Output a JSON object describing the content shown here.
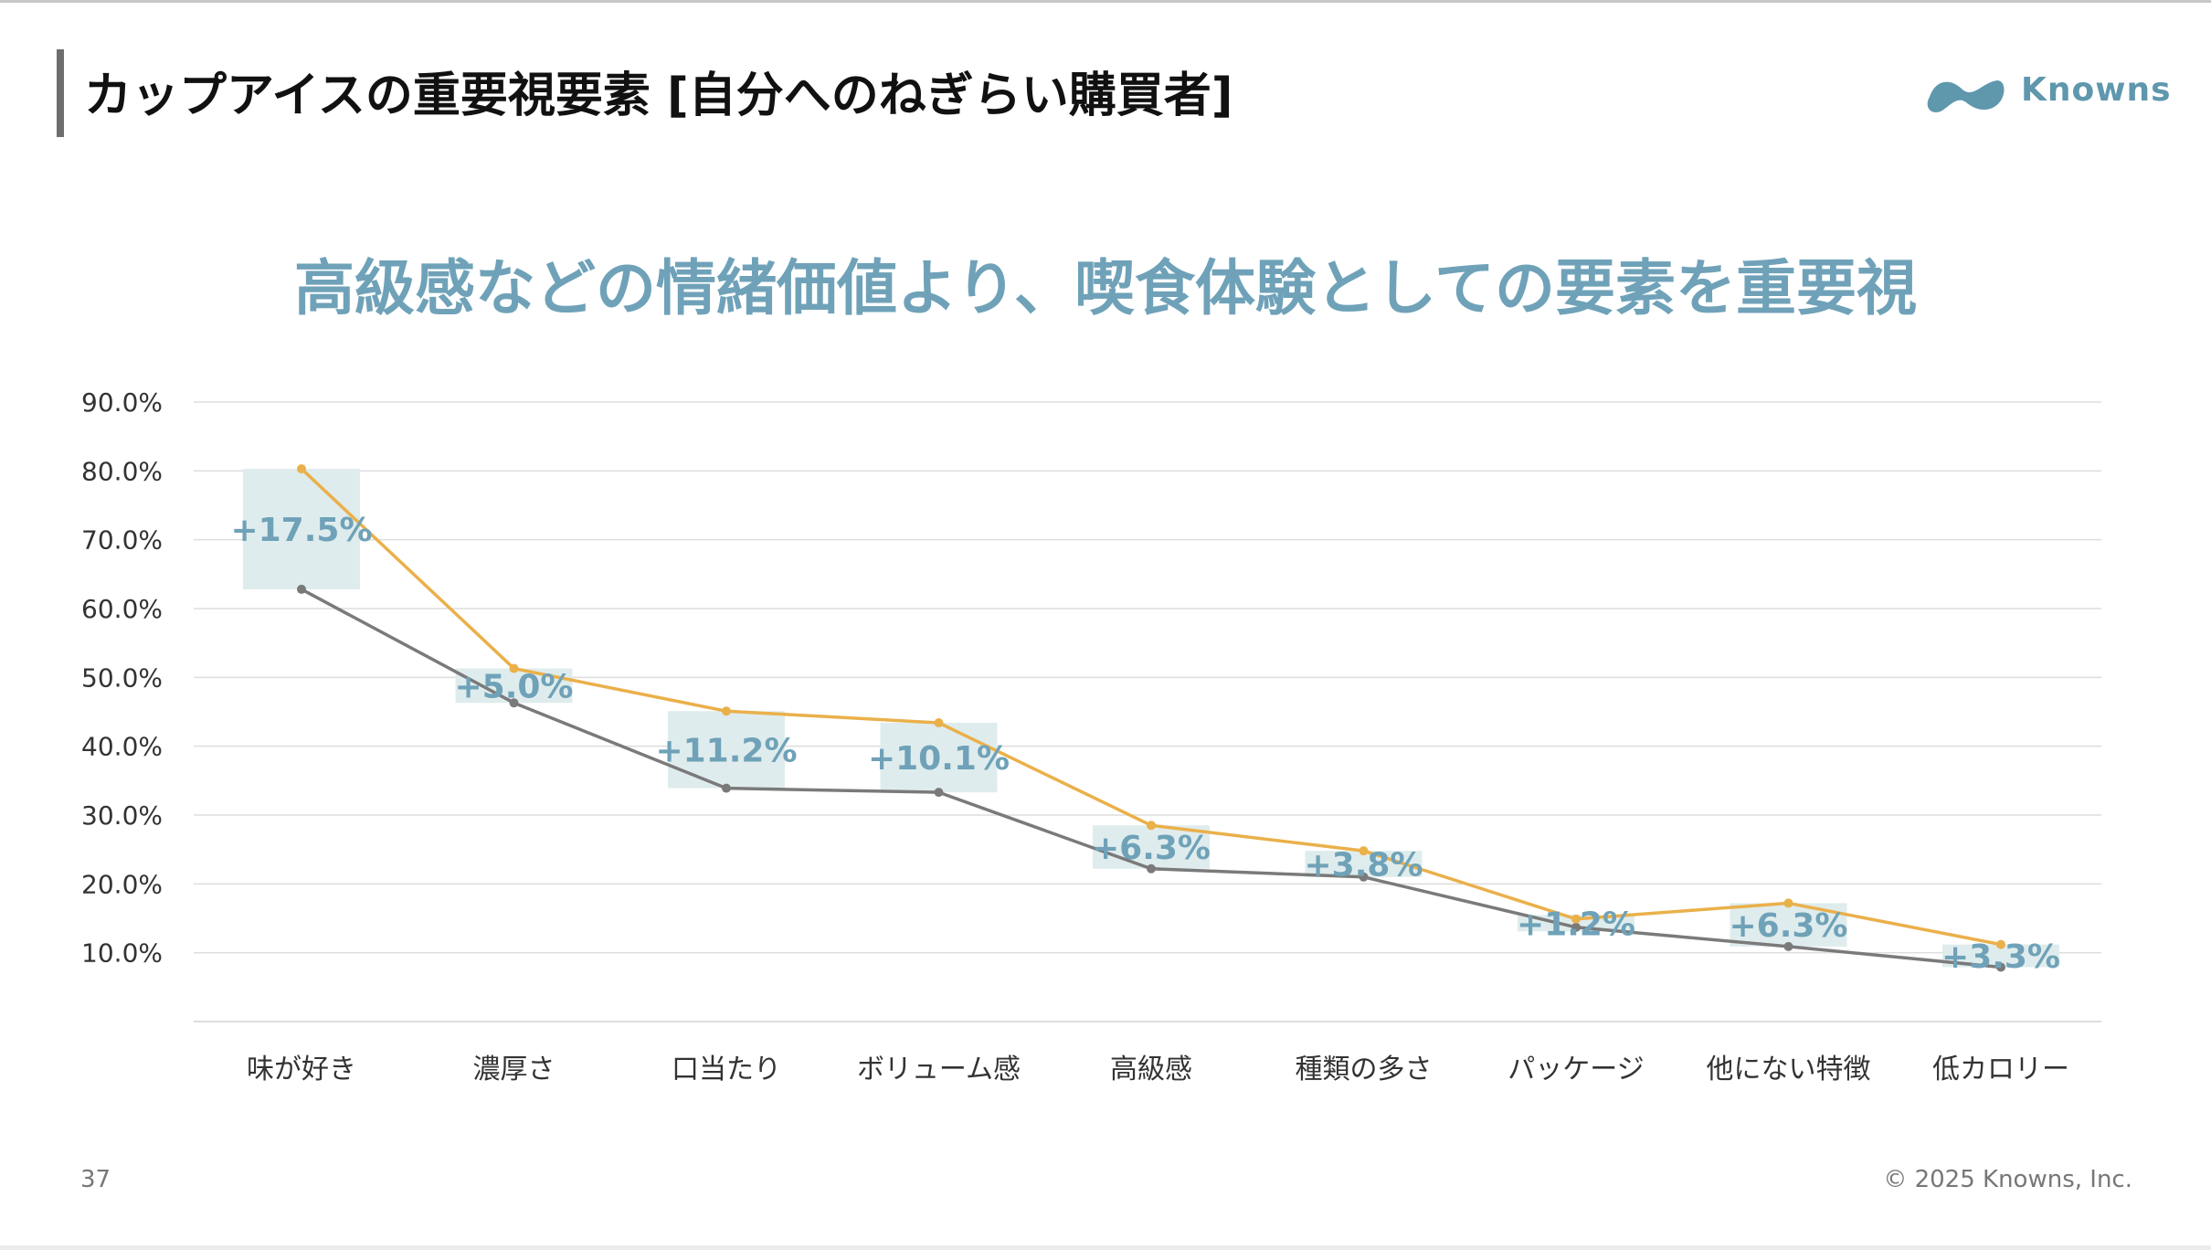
{
  "slide": {
    "title": "カップアイスの重要視要素 [自分へのねぎらい購買者]",
    "headline": "高級感などの情緒価値より、喫食体験としての要素を重要視",
    "page_number": "37",
    "copyright": "© 2025 Knowns, Inc."
  },
  "logo": {
    "text": "Knowns",
    "color": "#5f97ad"
  },
  "colors": {
    "series_highlight": "#eab04a",
    "series_base": "#7a7a7a",
    "diff_box": "#dfeced",
    "diff_text": "#6fa2b8",
    "grid": "#dddddd",
    "axis_text": "#333333"
  },
  "chart_data": {
    "type": "line",
    "title": "",
    "xlabel": "",
    "ylabel": "",
    "ylim": [
      0,
      90
    ],
    "yticks": [
      "10.0%",
      "20.0%",
      "30.0%",
      "40.0%",
      "50.0%",
      "60.0%",
      "70.0%",
      "80.0%",
      "90.0%"
    ],
    "grid": true,
    "legend": "none",
    "categories": [
      "味が好き",
      "濃厚さ",
      "口当たり",
      "ボリューム感",
      "高級感",
      "種類の多さ",
      "パッケージ",
      "他にない特徴",
      "低カロリー"
    ],
    "series": [
      {
        "values": [
          80.3,
          51.3,
          45.1,
          43.4,
          28.5,
          24.8,
          14.9,
          17.2,
          11.2
        ]
      },
      {
        "values": [
          62.8,
          46.3,
          33.9,
          33.3,
          22.2,
          21.0,
          13.7,
          10.9,
          7.9
        ]
      }
    ],
    "annotations": [
      "+17.5%",
      "+5.0%",
      "+11.2%",
      "+10.1%",
      "+6.3%",
      "+3.8%",
      "+1.2%",
      "+6.3%",
      "+3.3%"
    ]
  }
}
